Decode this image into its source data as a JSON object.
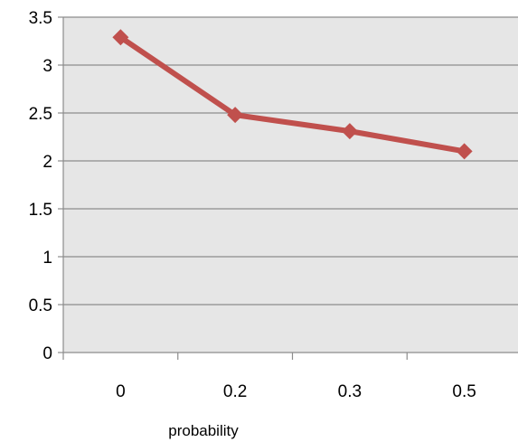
{
  "chart_data": {
    "type": "line",
    "title": "",
    "xlabel": "probability",
    "ylabel": "",
    "categories": [
      "0",
      "0.2",
      "0.3",
      "0.5"
    ],
    "series": [
      {
        "values": [
          3.29,
          2.48,
          2.31,
          2.1
        ],
        "color": "#c0504d",
        "marker": "diamond"
      }
    ],
    "ylim": [
      0,
      3.5
    ],
    "yticks": [
      "0",
      "0.5",
      "1",
      "1.5",
      "2",
      "2.5",
      "3",
      "3.5"
    ],
    "grid": true,
    "legend": "none",
    "plot_background": "#e6e6e6",
    "gridline_color": "#8c8c8c"
  }
}
